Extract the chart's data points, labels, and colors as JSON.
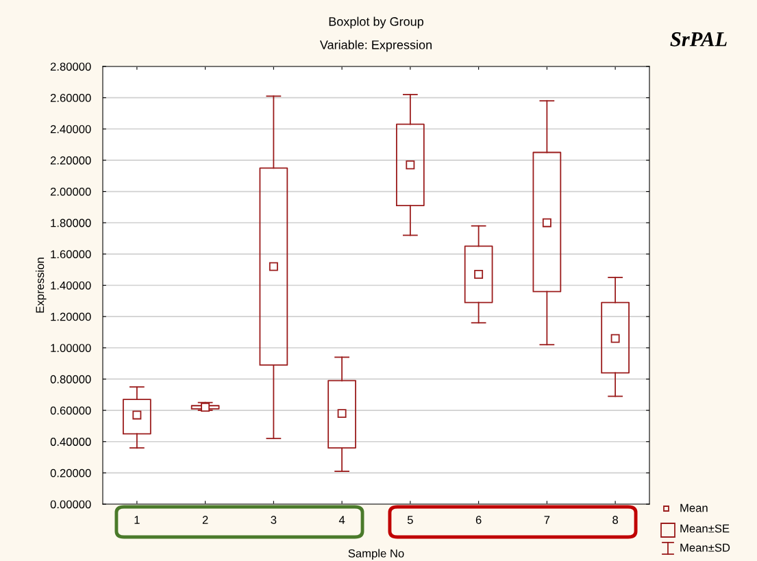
{
  "chart_data": {
    "type": "box",
    "title": "Boxplot by Group",
    "subtitle": "Variable: Expression",
    "xlabel": "Sample No",
    "ylabel": "Expression",
    "categories": [
      "1",
      "2",
      "3",
      "4",
      "5",
      "6",
      "7",
      "8"
    ],
    "series": [
      {
        "color": "#9b1c1c",
        "boxes": [
          {
            "low": 0.36,
            "q1": 0.45,
            "q3": 0.67,
            "high": 0.75,
            "mean": 0.57
          },
          {
            "low": 0.6,
            "q1": 0.61,
            "q3": 0.63,
            "high": 0.65,
            "mean": 0.62
          },
          {
            "low": 0.42,
            "q1": 0.89,
            "q3": 2.15,
            "high": 2.61,
            "mean": 1.52
          },
          {
            "low": 0.21,
            "q1": 0.36,
            "q3": 0.79,
            "high": 0.94,
            "mean": 0.58
          },
          {
            "low": 1.72,
            "q1": 1.91,
            "q3": 2.43,
            "high": 2.62,
            "mean": 2.17
          },
          {
            "low": 1.16,
            "q1": 1.29,
            "q3": 1.65,
            "high": 1.78,
            "mean": 1.47
          },
          {
            "low": 1.02,
            "q1": 1.36,
            "q3": 2.25,
            "high": 2.58,
            "mean": 1.8
          },
          {
            "low": 0.69,
            "q1": 0.84,
            "q3": 1.29,
            "high": 1.45,
            "mean": 1.06
          }
        ]
      }
    ],
    "ylim": [
      0,
      2.8
    ],
    "yticks": [
      {
        "value": 0,
        "label": "0.00000"
      },
      {
        "value": 0.2,
        "label": "0.20000"
      },
      {
        "value": 0.4,
        "label": "0.40000"
      },
      {
        "value": 0.6,
        "label": "0.60000"
      },
      {
        "value": 0.8,
        "label": "0.80000"
      },
      {
        "value": 1.0,
        "label": "1.00000"
      },
      {
        "value": 1.2,
        "label": "1.20000"
      },
      {
        "value": 1.4,
        "label": "1.40000"
      },
      {
        "value": 1.6,
        "label": "1.60000"
      },
      {
        "value": 1.8,
        "label": "1.80000"
      },
      {
        "value": 2.0,
        "label": "2.00000"
      },
      {
        "value": 2.2,
        "label": "2.20000"
      },
      {
        "value": 2.4,
        "label": "2.40000"
      },
      {
        "value": 2.6,
        "label": "2.60000"
      },
      {
        "value": 2.8,
        "label": "2.80000"
      }
    ],
    "grid": "y",
    "marker": "square",
    "annotations": [
      "SrPAL",
      "Mean",
      "Mean±SE",
      "Mean±SD"
    ]
  }
}
